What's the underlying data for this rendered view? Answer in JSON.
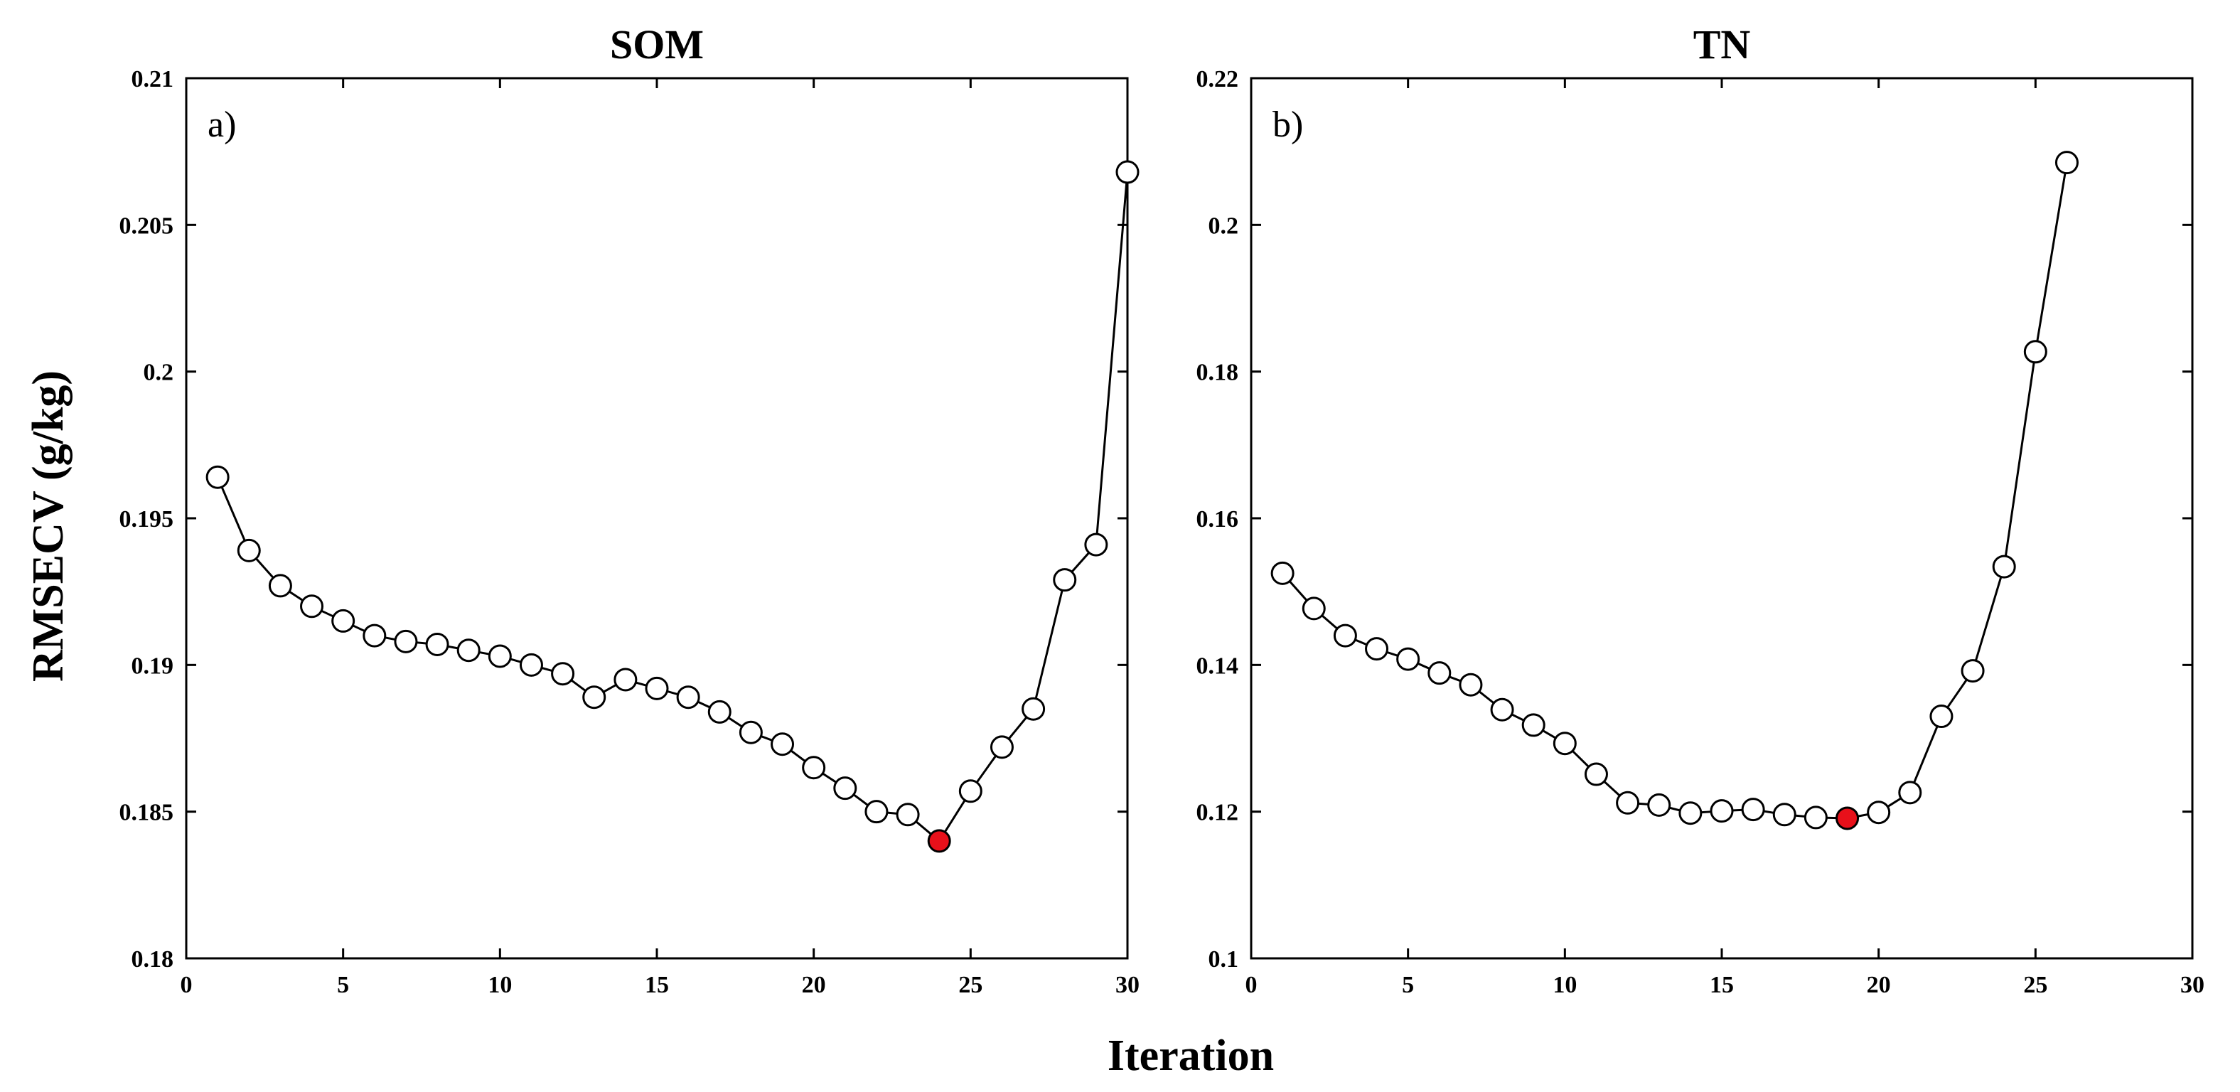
{
  "figure": {
    "xlabel": "Iteration",
    "ylabel": "RMSECV (g/kg)",
    "marker_fill": "#ffffff",
    "highlight_color": "#e8101a",
    "line_color": "#000000"
  },
  "chart_data": [
    {
      "type": "line",
      "title": "SOM",
      "panel_label": "a)",
      "xlabel": "Iteration",
      "ylabel": "RMSECV (g/kg)",
      "xlim": [
        0,
        30
      ],
      "ylim": [
        0.18,
        0.21
      ],
      "xticks": [
        0,
        5,
        10,
        15,
        20,
        25,
        30
      ],
      "yticks": [
        0.18,
        0.185,
        0.19,
        0.195,
        0.2,
        0.205,
        0.21
      ],
      "xtick_labels": [
        "0",
        "5",
        "10",
        "15",
        "20",
        "25",
        "30"
      ],
      "ytick_labels": [
        "0.18",
        "0.185",
        "0.19",
        "0.195",
        "0.2",
        "0.205",
        "0.21"
      ],
      "grid": false,
      "x": [
        1,
        2,
        3,
        4,
        5,
        6,
        7,
        8,
        9,
        10,
        11,
        12,
        13,
        14,
        15,
        16,
        17,
        18,
        19,
        20,
        21,
        22,
        23,
        24,
        25,
        26,
        27,
        28,
        29,
        30
      ],
      "values": [
        0.1964,
        0.1939,
        0.1927,
        0.192,
        0.1915,
        0.191,
        0.1908,
        0.1907,
        0.1905,
        0.1903,
        0.19,
        0.1897,
        0.1889,
        0.1895,
        0.1892,
        0.1889,
        0.1884,
        0.1877,
        0.1873,
        0.1865,
        0.1858,
        0.185,
        0.1849,
        0.184,
        0.1857,
        0.1872,
        0.1885,
        0.1929,
        0.1941,
        0.2068
      ],
      "highlight": {
        "x": 24,
        "y": 0.184
      }
    },
    {
      "type": "line",
      "title": "TN",
      "panel_label": "b)",
      "xlabel": "Iteration",
      "ylabel": "RMSECV (g/kg)",
      "xlim": [
        0,
        30
      ],
      "ylim": [
        0.1,
        0.22
      ],
      "xticks": [
        0,
        5,
        10,
        15,
        20,
        25,
        30
      ],
      "yticks": [
        0.1,
        0.12,
        0.14,
        0.16,
        0.18,
        0.2,
        0.22
      ],
      "xtick_labels": [
        "0",
        "5",
        "10",
        "15",
        "20",
        "25",
        "30"
      ],
      "ytick_labels": [
        "0.1",
        "0.12",
        "0.14",
        "0.16",
        "0.18",
        "0.2",
        "0.22"
      ],
      "grid": false,
      "x": [
        1,
        2,
        3,
        4,
        5,
        6,
        7,
        8,
        9,
        10,
        11,
        12,
        13,
        14,
        15,
        16,
        17,
        18,
        19,
        20,
        21,
        22,
        23,
        24,
        25,
        26
      ],
      "values": [
        0.1525,
        0.1477,
        0.144,
        0.1422,
        0.1408,
        0.1389,
        0.1373,
        0.1339,
        0.1318,
        0.1293,
        0.1251,
        0.1212,
        0.1209,
        0.1198,
        0.1201,
        0.1203,
        0.1196,
        0.1192,
        0.1191,
        0.1199,
        0.1226,
        0.133,
        0.1392,
        0.1534,
        0.1827,
        0.2085
      ],
      "highlight": {
        "x": 19,
        "y": 0.1191
      }
    }
  ]
}
